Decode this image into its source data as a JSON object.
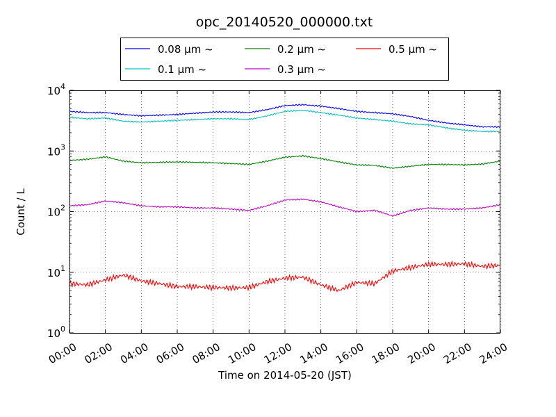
{
  "chart_data": {
    "type": "line",
    "title": "opc_20140520_000000.txt",
    "xlabel": "Time on 2014-05-20 (JST)",
    "ylabel": "Count / L",
    "y_scale": "log",
    "ylim": [
      1,
      10000
    ],
    "xlim": [
      "00:00",
      "24:00"
    ],
    "grid": true,
    "legend_position": "top",
    "x_ticks": [
      "00:00",
      "02:00",
      "04:00",
      "06:00",
      "08:00",
      "10:00",
      "12:00",
      "14:00",
      "16:00",
      "18:00",
      "20:00",
      "22:00",
      "24:00"
    ],
    "y_ticks": [
      {
        "base": "10",
        "exp": "0",
        "value": 1
      },
      {
        "base": "10",
        "exp": "1",
        "value": 10
      },
      {
        "base": "10",
        "exp": "2",
        "value": 100
      },
      {
        "base": "10",
        "exp": "3",
        "value": 1000
      },
      {
        "base": "10",
        "exp": "4",
        "value": 10000
      }
    ],
    "x": [
      "00:00",
      "01:00",
      "02:00",
      "03:00",
      "04:00",
      "05:00",
      "06:00",
      "07:00",
      "08:00",
      "09:00",
      "10:00",
      "11:00",
      "12:00",
      "13:00",
      "14:00",
      "15:00",
      "16:00",
      "17:00",
      "18:00",
      "19:00",
      "20:00",
      "21:00",
      "22:00",
      "23:00",
      "24:00"
    ],
    "series": [
      {
        "name": "0.08 μm ~",
        "color": "#0000ff",
        "values": [
          4500,
          4300,
          4300,
          4000,
          3800,
          3900,
          4000,
          4200,
          4400,
          4400,
          4300,
          4800,
          5600,
          5800,
          5500,
          5000,
          4500,
          4300,
          4100,
          3700,
          3200,
          2900,
          2700,
          2500,
          2500
        ]
      },
      {
        "name": "0.1 μm ~",
        "color": "#00bfbf",
        "values": [
          3600,
          3400,
          3500,
          3100,
          3000,
          3100,
          3200,
          3300,
          3400,
          3400,
          3300,
          3800,
          4500,
          4700,
          4300,
          3900,
          3500,
          3300,
          3100,
          2800,
          2700,
          2400,
          2200,
          2100,
          2100
        ]
      },
      {
        "name": "0.2 μm ~",
        "color": "#008000",
        "values": [
          700,
          730,
          800,
          680,
          640,
          650,
          660,
          650,
          640,
          620,
          600,
          680,
          790,
          830,
          750,
          660,
          590,
          580,
          520,
          560,
          600,
          600,
          590,
          610,
          680
        ]
      },
      {
        "name": "0.3 μm ~",
        "color": "#bf00bf",
        "values": [
          125,
          130,
          150,
          140,
          125,
          120,
          120,
          115,
          115,
          110,
          105,
          125,
          155,
          160,
          145,
          120,
          100,
          105,
          85,
          105,
          115,
          110,
          110,
          115,
          130
        ]
      },
      {
        "name": "0.5 μm ~",
        "color": "#ff0000",
        "values": [
          6.5,
          6.2,
          7.5,
          9.0,
          7.2,
          6.5,
          5.8,
          5.8,
          5.6,
          5.5,
          5.6,
          7.0,
          8.0,
          8.3,
          6.2,
          5.0,
          6.8,
          6.5,
          10.5,
          12.0,
          13.5,
          13.5,
          13.8,
          12.5,
          13.0
        ]
      }
    ]
  }
}
